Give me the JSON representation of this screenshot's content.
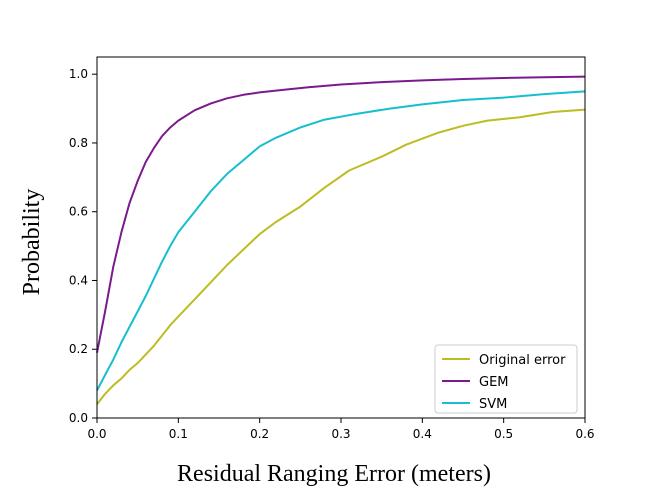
{
  "chart_data": {
    "type": "line",
    "xlabel": "Residual Ranging Error (meters)",
    "ylabel": "Probability",
    "xlim": [
      0.0,
      0.6
    ],
    "ylim": [
      0.0,
      1.05
    ],
    "xticks": [
      "0.0",
      "0.1",
      "0.2",
      "0.3",
      "0.4",
      "0.5",
      "0.6"
    ],
    "yticks": [
      "0.0",
      "0.2",
      "0.4",
      "0.6",
      "0.8",
      "1.0"
    ],
    "grid": false,
    "legend_position": "lower-right",
    "series": [
      {
        "name": "Original error",
        "color": "#bcbd22",
        "points": [
          [
            0.0,
            0.04
          ],
          [
            0.01,
            0.07
          ],
          [
            0.02,
            0.095
          ],
          [
            0.03,
            0.115
          ],
          [
            0.04,
            0.14
          ],
          [
            0.05,
            0.16
          ],
          [
            0.06,
            0.185
          ],
          [
            0.07,
            0.21
          ],
          [
            0.08,
            0.24
          ],
          [
            0.09,
            0.27
          ],
          [
            0.1,
            0.295
          ],
          [
            0.12,
            0.345
          ],
          [
            0.14,
            0.395
          ],
          [
            0.16,
            0.445
          ],
          [
            0.18,
            0.49
          ],
          [
            0.2,
            0.535
          ],
          [
            0.22,
            0.57
          ],
          [
            0.25,
            0.615
          ],
          [
            0.28,
            0.67
          ],
          [
            0.31,
            0.72
          ],
          [
            0.35,
            0.76
          ],
          [
            0.38,
            0.795
          ],
          [
            0.42,
            0.83
          ],
          [
            0.45,
            0.85
          ],
          [
            0.48,
            0.865
          ],
          [
            0.52,
            0.875
          ],
          [
            0.56,
            0.89
          ],
          [
            0.6,
            0.897
          ]
        ]
      },
      {
        "name": "GEM",
        "color": "#7b1a8c",
        "points": [
          [
            0.0,
            0.19
          ],
          [
            0.01,
            0.31
          ],
          [
            0.02,
            0.44
          ],
          [
            0.03,
            0.54
          ],
          [
            0.04,
            0.625
          ],
          [
            0.05,
            0.69
          ],
          [
            0.06,
            0.745
          ],
          [
            0.07,
            0.785
          ],
          [
            0.08,
            0.82
          ],
          [
            0.09,
            0.845
          ],
          [
            0.1,
            0.865
          ],
          [
            0.12,
            0.895
          ],
          [
            0.14,
            0.915
          ],
          [
            0.16,
            0.93
          ],
          [
            0.18,
            0.94
          ],
          [
            0.2,
            0.947
          ],
          [
            0.23,
            0.955
          ],
          [
            0.26,
            0.962
          ],
          [
            0.3,
            0.97
          ],
          [
            0.35,
            0.977
          ],
          [
            0.4,
            0.982
          ],
          [
            0.45,
            0.986
          ],
          [
            0.5,
            0.989
          ],
          [
            0.55,
            0.991
          ],
          [
            0.6,
            0.993
          ]
        ]
      },
      {
        "name": "SVM",
        "color": "#17becf",
        "points": [
          [
            0.0,
            0.08
          ],
          [
            0.01,
            0.125
          ],
          [
            0.02,
            0.17
          ],
          [
            0.03,
            0.22
          ],
          [
            0.04,
            0.265
          ],
          [
            0.05,
            0.31
          ],
          [
            0.06,
            0.355
          ],
          [
            0.07,
            0.405
          ],
          [
            0.08,
            0.455
          ],
          [
            0.09,
            0.5
          ],
          [
            0.1,
            0.54
          ],
          [
            0.12,
            0.6
          ],
          [
            0.14,
            0.66
          ],
          [
            0.16,
            0.71
          ],
          [
            0.18,
            0.75
          ],
          [
            0.2,
            0.79
          ],
          [
            0.22,
            0.815
          ],
          [
            0.25,
            0.845
          ],
          [
            0.28,
            0.868
          ],
          [
            0.32,
            0.885
          ],
          [
            0.36,
            0.9
          ],
          [
            0.4,
            0.912
          ],
          [
            0.45,
            0.925
          ],
          [
            0.5,
            0.932
          ],
          [
            0.55,
            0.942
          ],
          [
            0.6,
            0.95
          ]
        ]
      }
    ]
  }
}
